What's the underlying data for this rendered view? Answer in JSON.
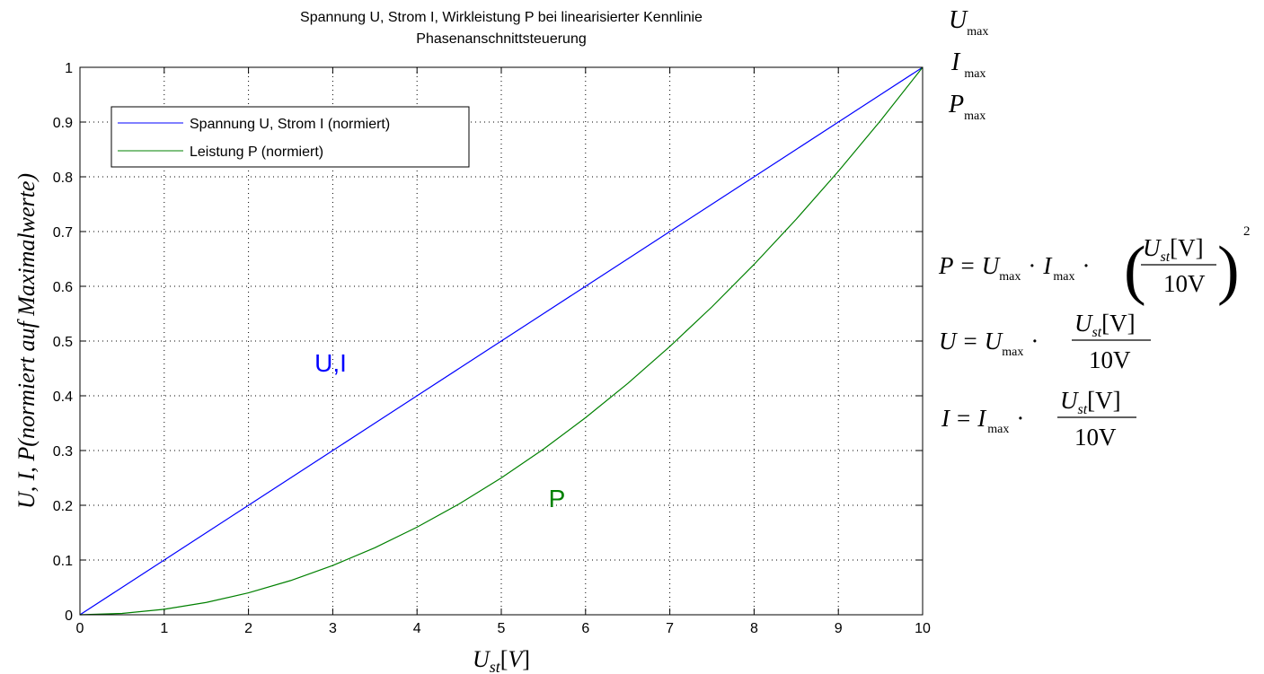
{
  "chart_data": {
    "type": "line",
    "title": "Spannung U, Strom I, Wirkleistung P bei linearisierter Kennlinie",
    "subtitle": "Phasenanschnittsteuerung",
    "xlabel": "U_st[V]",
    "ylabel": "U, I, P(normiert auf Maximalwerte)",
    "xlim": [
      0,
      10
    ],
    "ylim": [
      0,
      1
    ],
    "xticks": [
      0,
      1,
      2,
      3,
      4,
      5,
      6,
      7,
      8,
      9,
      10
    ],
    "yticks": [
      0,
      0.1,
      0.2,
      0.3,
      0.4,
      0.5,
      0.6,
      0.7,
      0.8,
      0.9,
      1
    ],
    "x_tick_labels": [
      "0",
      "1",
      "2",
      "3",
      "4",
      "5",
      "6",
      "7",
      "8",
      "9",
      "10"
    ],
    "y_tick_labels": [
      "0",
      "0.1",
      "0.2",
      "0.3",
      "0.4",
      "0.5",
      "0.6",
      "0.7",
      "0.8",
      "0.9",
      "1"
    ],
    "grid": true,
    "legend_position": "top-left",
    "x": [
      0,
      0.5,
      1,
      1.5,
      2,
      2.5,
      3,
      3.5,
      4,
      4.5,
      5,
      5.5,
      6,
      6.5,
      7,
      7.5,
      8,
      8.5,
      9,
      9.5,
      10
    ],
    "series": [
      {
        "name": "Spannung U, Strom I (normiert)",
        "color": "#0000ff",
        "values": [
          0,
          0.05,
          0.1,
          0.15,
          0.2,
          0.25,
          0.3,
          0.35,
          0.4,
          0.45,
          0.5,
          0.55,
          0.6,
          0.65,
          0.7,
          0.75,
          0.8,
          0.85,
          0.9,
          0.95,
          1.0
        ]
      },
      {
        "name": "Leistung P (normiert)",
        "color": "#008000",
        "values": [
          0,
          0.0025,
          0.01,
          0.0225,
          0.04,
          0.0625,
          0.09,
          0.1225,
          0.16,
          0.2025,
          0.25,
          0.3025,
          0.36,
          0.4225,
          0.49,
          0.5625,
          0.64,
          0.7225,
          0.81,
          0.9025,
          1.0
        ]
      }
    ],
    "annotations": [
      {
        "text": "U,I",
        "x": 3.0,
        "y": 0.465,
        "color": "#0000ff"
      },
      {
        "text": "P",
        "x": 5.65,
        "y": 0.2,
        "color": "#008000"
      }
    ]
  },
  "side_labels": {
    "u_max": {
      "main": "U",
      "sub": "max"
    },
    "i_max": {
      "main": "I",
      "sub": "max"
    },
    "p_max": {
      "main": "P",
      "sub": "max"
    }
  },
  "formulas": {
    "p": {
      "lhs": "P",
      "eq": "=",
      "u": "U",
      "max": "max",
      "dot": "·",
      "i": "I",
      "num_u": "U",
      "num_sub": "st",
      "num_unit": "[V]",
      "den": "10V",
      "exp": "2"
    },
    "u": {
      "lhs": "U",
      "eq": "=",
      "u": "U",
      "max": "max",
      "dot": "·",
      "num_u": "U",
      "num_sub": "st",
      "num_unit": "[V]",
      "den": "10V"
    },
    "i": {
      "lhs": "I",
      "eq": "=",
      "i": "I",
      "max": "max",
      "dot": "·",
      "num_u": "U",
      "num_sub": "st",
      "num_unit": "[V]",
      "den": "10V"
    }
  }
}
